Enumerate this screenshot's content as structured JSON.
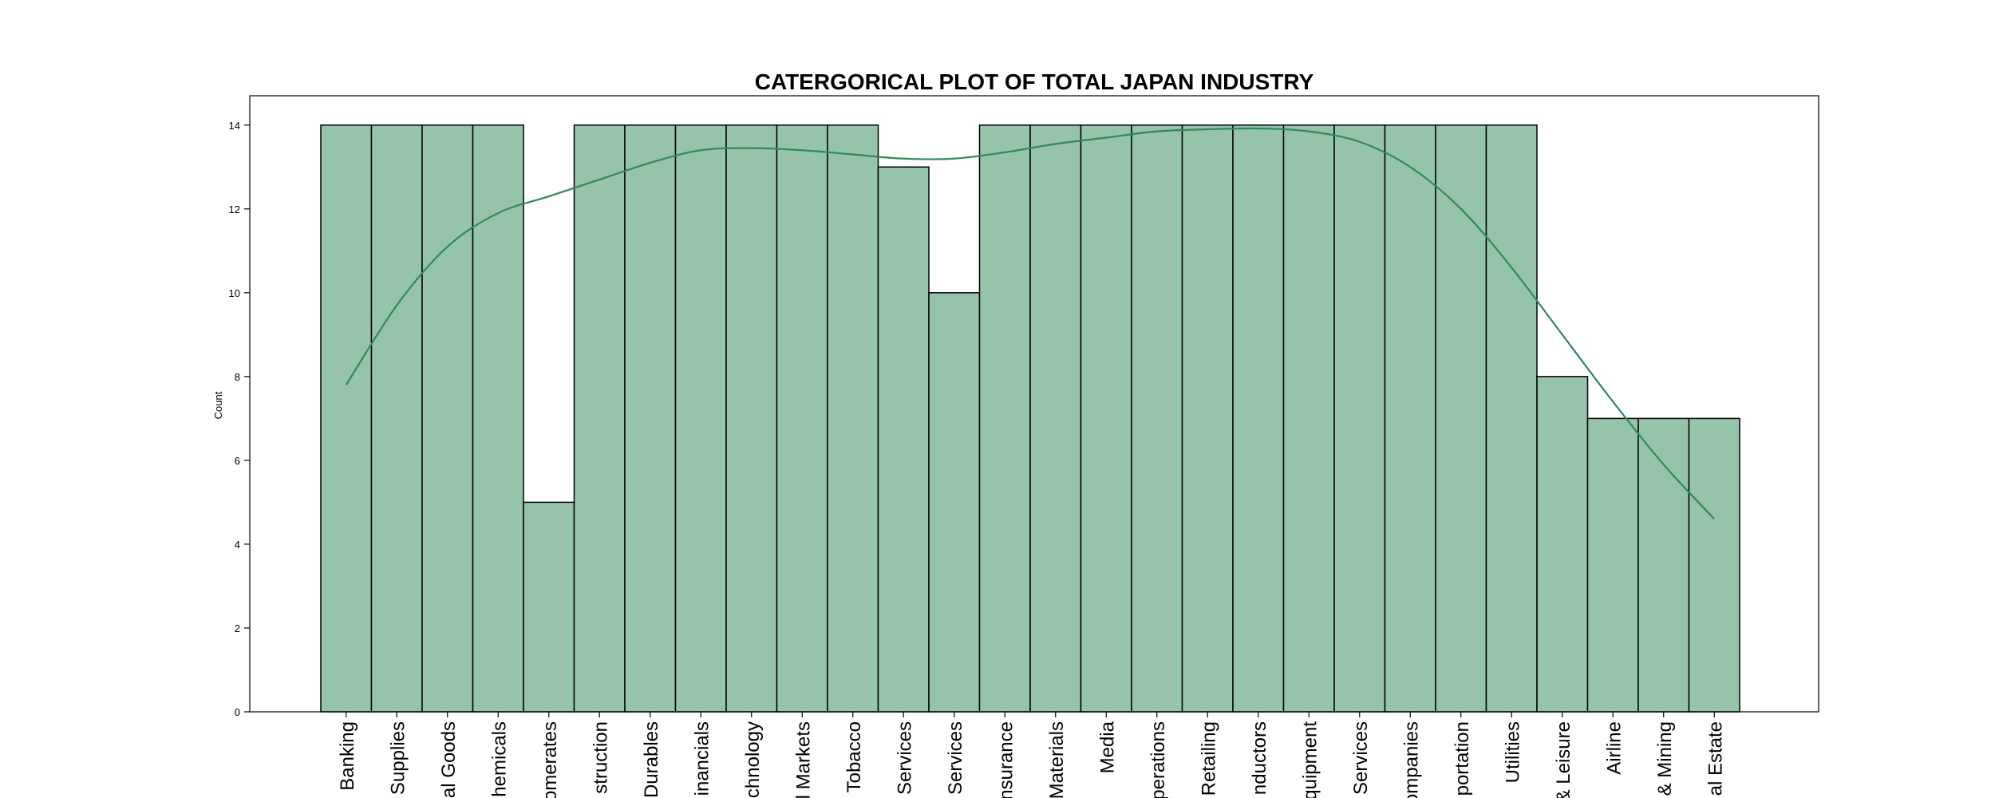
{
  "chart_data": {
    "type": "bar",
    "title": "CATERGORICAL PLOT OF TOTAL JAPAN INDUSTRY",
    "xlabel": "",
    "ylabel": "Count",
    "ylim": [
      0,
      14.7
    ],
    "yticks": [
      0,
      2,
      4,
      6,
      8,
      10,
      12,
      14
    ],
    "grid": false,
    "legend": "none",
    "bar_color": "#96c4aa",
    "line_color": "#2e8b57",
    "categories": [
      "Banking",
      "Supplies",
      "al Goods",
      "hemicals",
      "omerates",
      "struction",
      "Durables",
      "inancials",
      "chnology",
      "l Markets",
      "Tobacco",
      "Services",
      "Services",
      "nsurance",
      "Materials",
      "Media",
      "perations",
      "Retailing",
      "nductors",
      "quipment",
      "Services",
      "ompanies",
      "portation",
      "Utilities",
      "& Leisure",
      "Airline",
      "& Mining",
      "al Estate"
    ],
    "values": [
      14,
      14,
      14,
      14,
      5,
      14,
      14,
      14,
      14,
      14,
      14,
      13,
      10,
      14,
      14,
      14,
      14,
      14,
      14,
      14,
      14,
      14,
      14,
      14,
      8,
      7,
      7,
      7
    ],
    "kde_curve": {
      "x_index": [
        0,
        1,
        2,
        3,
        4,
        5,
        6,
        7,
        8,
        9,
        10,
        11,
        12,
        13,
        14,
        15,
        16,
        17,
        18,
        19,
        20,
        21,
        22,
        23,
        24,
        25,
        26,
        27
      ],
      "values": [
        7.8,
        9.7,
        11.1,
        11.9,
        12.3,
        12.7,
        13.1,
        13.4,
        13.45,
        13.4,
        13.3,
        13.2,
        13.2,
        13.35,
        13.55,
        13.7,
        13.85,
        13.9,
        13.92,
        13.85,
        13.6,
        13.0,
        12.0,
        10.6,
        9.0,
        7.4,
        5.9,
        4.6
      ]
    }
  }
}
